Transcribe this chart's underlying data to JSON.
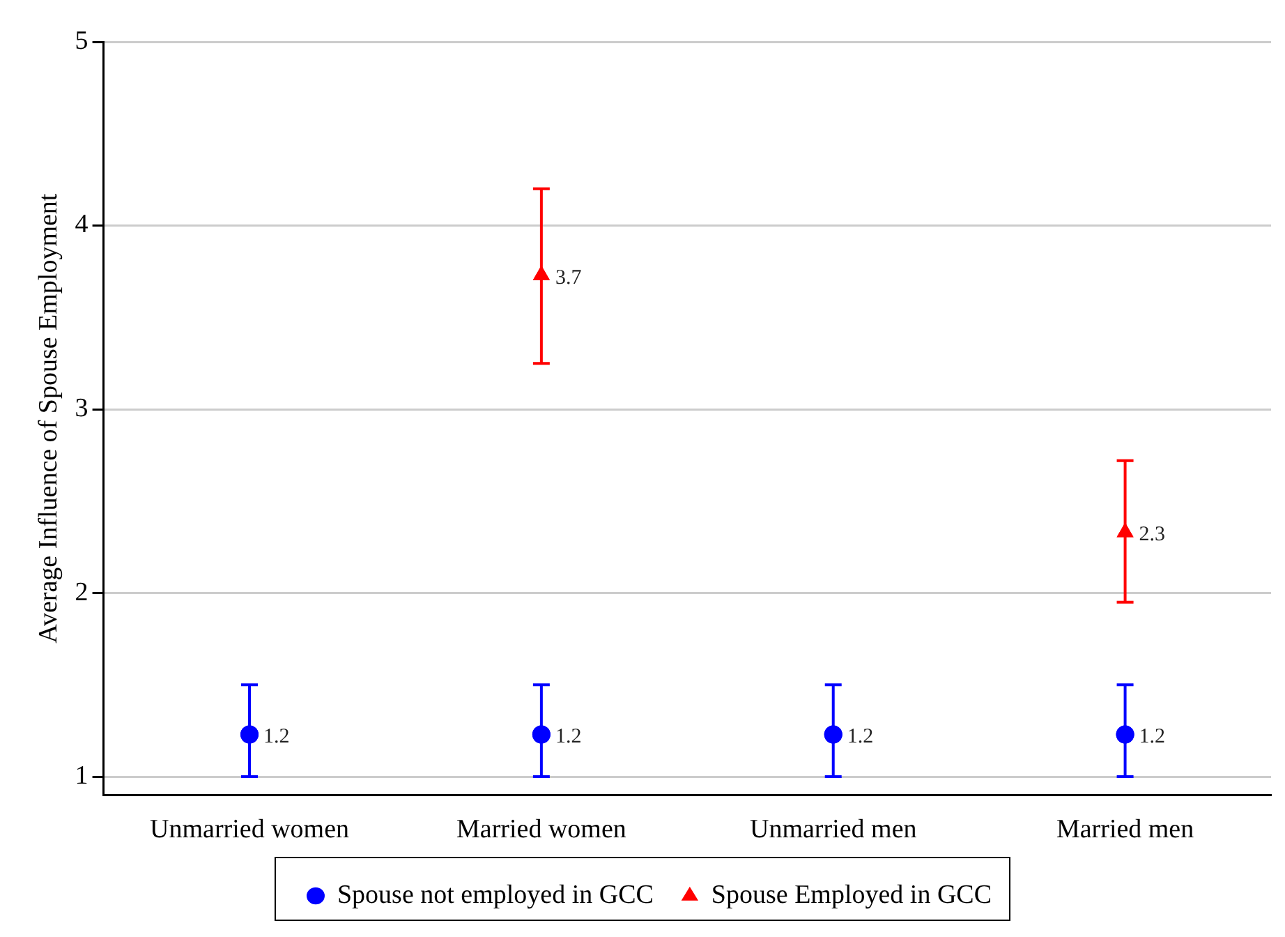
{
  "chart_data": {
    "type": "scatter",
    "ylabel": "Average Influence of Spouse Employment",
    "categories": [
      "Unmarried women",
      "Married women",
      "Unmarried men",
      "Married men"
    ],
    "series": [
      {
        "name": "Spouse not employed in GCC",
        "color": "#0000ff",
        "marker": "circle",
        "values": [
          1.23,
          1.23,
          1.23,
          1.23
        ],
        "errors": [
          [
            1.0,
            1.5
          ],
          [
            1.0,
            1.5
          ],
          [
            1.0,
            1.5
          ],
          [
            1.0,
            1.5
          ]
        ],
        "value_labels": [
          "1.2",
          "1.2",
          "1.2",
          "1.2"
        ]
      },
      {
        "name": "Spouse Employed in GCC",
        "color": "#ff0000",
        "marker": "triangle",
        "values": [
          null,
          3.73,
          null,
          2.33
        ],
        "errors": [
          null,
          [
            3.25,
            4.2
          ],
          null,
          [
            1.95,
            2.72
          ]
        ],
        "value_labels": [
          null,
          "3.7",
          null,
          "2.3"
        ]
      }
    ],
    "ylim": [
      0.9,
      5
    ],
    "yticks": [
      1,
      2,
      3,
      4,
      5
    ],
    "grid": "y",
    "legend": "bottom"
  }
}
